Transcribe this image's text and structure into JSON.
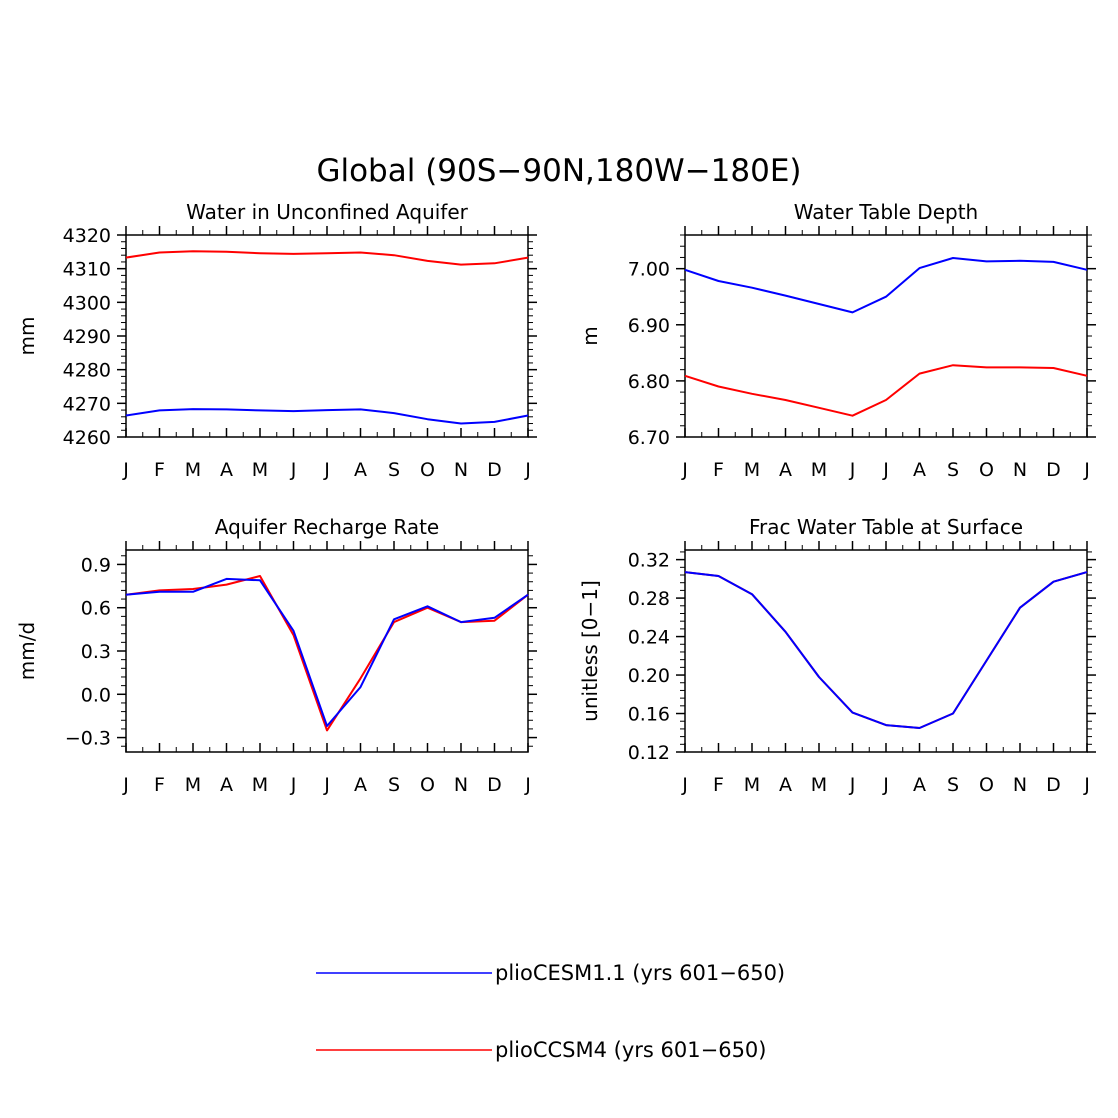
{
  "figure": {
    "title": "Global (90S-90N,180W-180E)"
  },
  "legend": [
    {
      "label": "plioCESM1.1 (yrs 601-650)",
      "color": "#0000ff"
    },
    {
      "label": "plioCCSM4 (yrs 601-650)",
      "color": "#ff0000"
    }
  ],
  "chart_data": [
    {
      "type": "line",
      "title": "Water in Unconfined Aquifer",
      "xlabel": "",
      "ylabel": "mm",
      "x_ticks": [
        "J",
        "F",
        "M",
        "A",
        "M",
        "J",
        "J",
        "A",
        "S",
        "O",
        "N",
        "D",
        "J"
      ],
      "ylim": [
        4260,
        4320
      ],
      "y_ticks": [
        "4260",
        "4270",
        "4280",
        "4290",
        "4300",
        "4310",
        "4320"
      ],
      "grid": false,
      "series": [
        {
          "color": "#ff0000",
          "values": [
            4313.3,
            4314.8,
            4315.2,
            4315.0,
            4314.6,
            4314.4,
            4314.6,
            4314.8,
            4314.0,
            4312.3,
            4311.2,
            4311.6,
            4313.3
          ]
        },
        {
          "color": "#0000ff",
          "values": [
            4266.4,
            4267.9,
            4268.3,
            4268.2,
            4267.9,
            4267.7,
            4268.0,
            4268.2,
            4267.1,
            4265.3,
            4264.0,
            4264.5,
            4266.4
          ]
        }
      ]
    },
    {
      "type": "line",
      "title": "Water Table Depth",
      "xlabel": "",
      "ylabel": "m",
      "x_ticks": [
        "J",
        "F",
        "M",
        "A",
        "M",
        "J",
        "J",
        "A",
        "S",
        "O",
        "N",
        "D",
        "J"
      ],
      "ylim": [
        6.7,
        7.06
      ],
      "y_ticks": [
        "6.70",
        "6.80",
        "6.90",
        "7.00"
      ],
      "grid": false,
      "series": [
        {
          "color": "#0000ff",
          "values": [
            6.998,
            6.978,
            6.966,
            6.952,
            6.937,
            6.922,
            6.95,
            7.001,
            7.019,
            7.013,
            7.014,
            7.012,
            6.998
          ]
        },
        {
          "color": "#ff0000",
          "values": [
            6.809,
            6.79,
            6.777,
            6.766,
            6.752,
            6.738,
            6.766,
            6.813,
            6.828,
            6.824,
            6.824,
            6.823,
            6.809
          ]
        }
      ]
    },
    {
      "type": "line",
      "title": "Aquifer Recharge Rate",
      "xlabel": "",
      "ylabel": "mm/d",
      "x_ticks": [
        "J",
        "F",
        "M",
        "A",
        "M",
        "J",
        "J",
        "A",
        "S",
        "O",
        "N",
        "D",
        "J"
      ],
      "ylim": [
        -0.4,
        1.0
      ],
      "y_ticks": [
        "-0.3",
        "0.0",
        "0.3",
        "0.6",
        "0.9"
      ],
      "grid": false,
      "series": [
        {
          "color": "#ff0000",
          "values": [
            0.69,
            0.72,
            0.73,
            0.76,
            0.82,
            0.41,
            -0.25,
            0.11,
            0.5,
            0.6,
            0.5,
            0.51,
            0.69
          ]
        },
        {
          "color": "#0000ff",
          "values": [
            0.69,
            0.71,
            0.71,
            0.8,
            0.79,
            0.44,
            -0.22,
            0.05,
            0.52,
            0.61,
            0.5,
            0.53,
            0.69
          ]
        }
      ]
    },
    {
      "type": "line",
      "title": "Frac Water Table at Surface",
      "xlabel": "",
      "ylabel": "unitless [0-1]",
      "x_ticks": [
        "J",
        "F",
        "M",
        "A",
        "M",
        "J",
        "J",
        "A",
        "S",
        "O",
        "N",
        "D",
        "J"
      ],
      "ylim": [
        0.12,
        0.33
      ],
      "y_ticks": [
        "0.12",
        "0.16",
        "0.20",
        "0.24",
        "0.28",
        "0.32"
      ],
      "grid": false,
      "series": [
        {
          "color": "#ff0000",
          "values": [
            0.307,
            0.303,
            0.284,
            0.245,
            0.198,
            0.161,
            0.148,
            0.145,
            0.16,
            0.215,
            0.27,
            0.297,
            0.307
          ]
        },
        {
          "color": "#0000ff",
          "values": [
            0.307,
            0.303,
            0.284,
            0.245,
            0.198,
            0.161,
            0.148,
            0.145,
            0.16,
            0.215,
            0.27,
            0.297,
            0.307
          ]
        }
      ]
    }
  ]
}
